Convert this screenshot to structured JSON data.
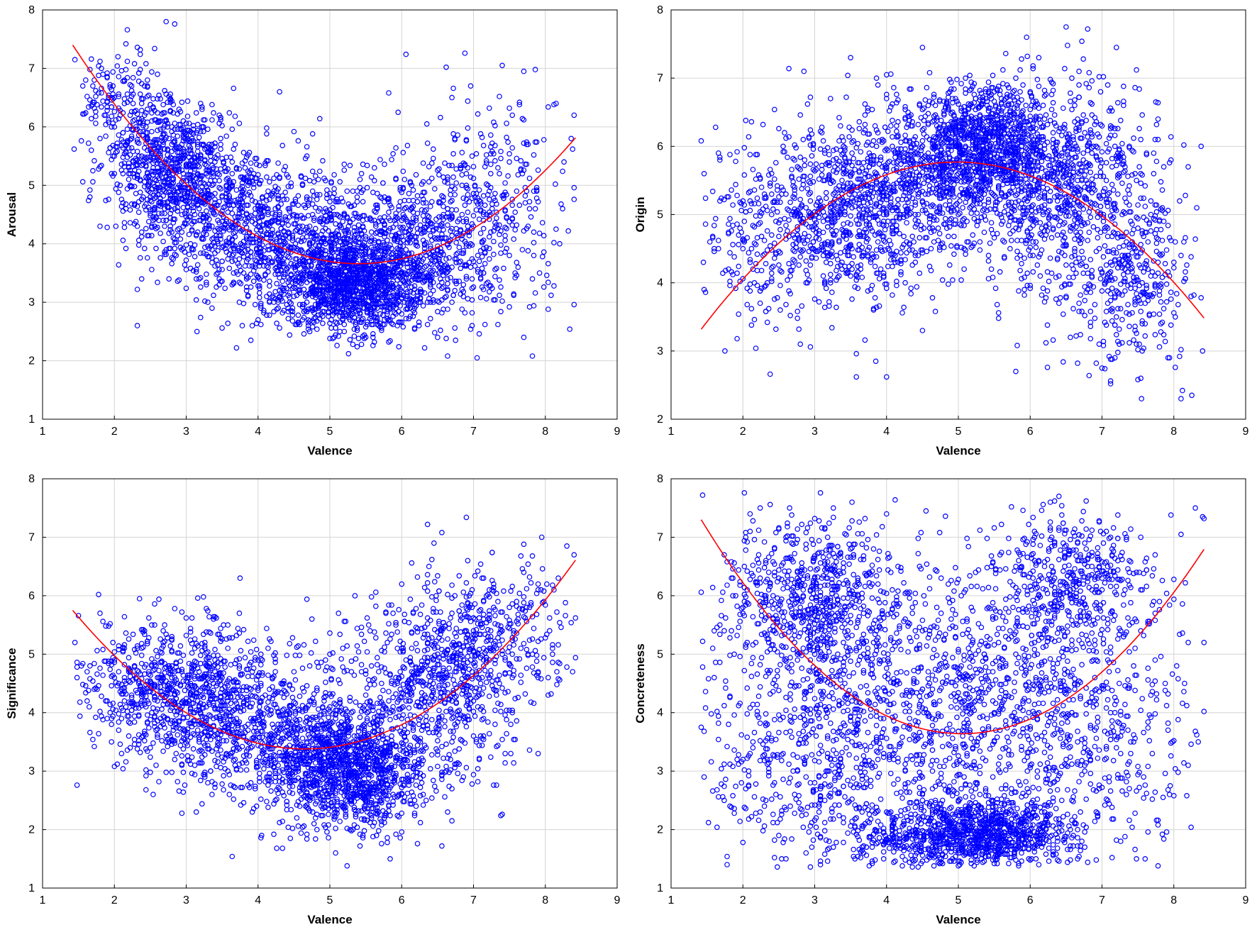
{
  "chart_data": [
    {
      "type": "scatter",
      "xlabel": "Valence",
      "ylabel": "Arousal",
      "xlim": [
        1,
        9
      ],
      "ylim": [
        1,
        8
      ],
      "xticks": [
        1,
        2,
        3,
        4,
        5,
        6,
        7,
        8,
        9
      ],
      "yticks": [
        1,
        2,
        3,
        4,
        5,
        6,
        7,
        8
      ],
      "grid": true,
      "point_color": "#0000ff",
      "fit_color": "#ff0000",
      "fit": {
        "kind": "quadratic",
        "x_range": [
          1.42,
          8.42
        ],
        "vertex_x": 5.4,
        "vertex_y": 3.66,
        "y_at_start": 7.4
      },
      "cloud": [
        {
          "cx": 5.3,
          "cy": 3.3,
          "sx": 0.55,
          "sy": 0.4,
          "n": 1300
        },
        {
          "cx": 4.5,
          "cy": 3.9,
          "sx": 0.9,
          "sy": 0.55,
          "n": 450
        },
        {
          "cx": 6.4,
          "cy": 3.9,
          "sx": 0.7,
          "sy": 0.6,
          "n": 450
        },
        {
          "cx": 2.8,
          "cy": 5.3,
          "sx": 0.45,
          "sy": 0.55,
          "n": 700
        },
        {
          "cx": 3.7,
          "cy": 4.5,
          "sx": 0.6,
          "sy": 0.6,
          "n": 500
        },
        {
          "cx": 2.1,
          "cy": 6.3,
          "sx": 0.4,
          "sy": 0.5,
          "n": 200
        },
        {
          "cx": 7.3,
          "cy": 4.8,
          "sx": 0.55,
          "sy": 0.9,
          "n": 280
        },
        {
          "cx": 5.2,
          "cy": 4.5,
          "sx": 0.9,
          "sy": 0.5,
          "n": 250
        }
      ],
      "outliers": [
        [
          1.45,
          7.15
        ],
        [
          1.6,
          6.8
        ],
        [
          1.7,
          5.25
        ],
        [
          2.05,
          7.2
        ],
        [
          2.3,
          6.0
        ],
        [
          4.3,
          6.6
        ],
        [
          5.95,
          6.25
        ],
        [
          6.35,
          6.05
        ],
        [
          7.05,
          2.05
        ],
        [
          7.4,
          7.05
        ],
        [
          7.7,
          2.4
        ],
        [
          7.7,
          6.95
        ],
        [
          8.15,
          6.4
        ],
        [
          8.15,
          4.25
        ],
        [
          8.4,
          6.2
        ],
        [
          3.9,
          2.35
        ],
        [
          4.7,
          2.65
        ],
        [
          3.15,
          2.5
        ],
        [
          6.75,
          2.35
        ]
      ]
    },
    {
      "type": "scatter",
      "xlabel": "Valence",
      "ylabel": "Origin",
      "xlim": [
        1,
        9
      ],
      "ylim": [
        2,
        8
      ],
      "xticks": [
        1,
        2,
        3,
        4,
        5,
        6,
        7,
        8,
        9
      ],
      "yticks": [
        2,
        3,
        4,
        5,
        6,
        7,
        8
      ],
      "grid": true,
      "point_color": "#0000ff",
      "fit_color": "#ff0000",
      "fit": {
        "kind": "quadratic",
        "x_range": [
          1.42,
          8.42
        ],
        "vertex_x": 4.98,
        "vertex_y": 5.77,
        "y_at_start": 3.32
      },
      "cloud": [
        {
          "cx": 5.4,
          "cy": 6.0,
          "sx": 0.6,
          "sy": 0.45,
          "n": 1200
        },
        {
          "cx": 3.5,
          "cy": 5.0,
          "sx": 0.7,
          "sy": 0.7,
          "n": 800
        },
        {
          "cx": 6.5,
          "cy": 5.3,
          "sx": 0.7,
          "sy": 0.8,
          "n": 800
        },
        {
          "cx": 2.3,
          "cy": 4.7,
          "sx": 0.5,
          "sy": 0.7,
          "n": 200
        },
        {
          "cx": 7.4,
          "cy": 4.0,
          "sx": 0.4,
          "sy": 0.6,
          "n": 300
        },
        {
          "cx": 4.5,
          "cy": 5.4,
          "sx": 0.8,
          "sy": 0.5,
          "n": 400
        }
      ],
      "outliers": [
        [
          1.45,
          4.3
        ],
        [
          1.75,
          3.0
        ],
        [
          1.6,
          4.5
        ],
        [
          2.85,
          7.1
        ],
        [
          3.85,
          2.85
        ],
        [
          4.0,
          7.05
        ],
        [
          3.5,
          7.3
        ],
        [
          4.5,
          7.45
        ],
        [
          5.8,
          2.7
        ],
        [
          5.95,
          7.6
        ],
        [
          6.5,
          7.75
        ],
        [
          7.55,
          2.3
        ],
        [
          8.1,
          2.3
        ],
        [
          8.25,
          2.35
        ],
        [
          8.4,
          3.0
        ],
        [
          8.1,
          4.4
        ],
        [
          7.75,
          6.65
        ],
        [
          7.2,
          7.45
        ],
        [
          7.0,
          2.75
        ]
      ]
    },
    {
      "type": "scatter",
      "xlabel": "Valence",
      "ylabel": "Significance",
      "xlim": [
        1,
        9
      ],
      "ylim": [
        1,
        8
      ],
      "xticks": [
        1,
        2,
        3,
        4,
        5,
        6,
        7,
        8,
        9
      ],
      "yticks": [
        1,
        2,
        3,
        4,
        5,
        6,
        7,
        8
      ],
      "grid": true,
      "point_color": "#0000ff",
      "fit_color": "#ff0000",
      "fit": {
        "kind": "quadratic",
        "x_range": [
          1.42,
          8.42
        ],
        "vertex_x": 4.65,
        "vertex_y": 3.38,
        "y_at_start": 5.75
      },
      "cloud": [
        {
          "cx": 5.3,
          "cy": 3.0,
          "sx": 0.5,
          "sy": 0.5,
          "n": 1100
        },
        {
          "cx": 3.2,
          "cy": 4.2,
          "sx": 0.7,
          "sy": 0.65,
          "n": 900
        },
        {
          "cx": 4.4,
          "cy": 3.5,
          "sx": 0.7,
          "sy": 0.6,
          "n": 500
        },
        {
          "cx": 6.4,
          "cy": 4.4,
          "sx": 0.65,
          "sy": 0.8,
          "n": 700
        },
        {
          "cx": 7.3,
          "cy": 5.4,
          "sx": 0.5,
          "sy": 0.6,
          "n": 300
        },
        {
          "cx": 2.2,
          "cy": 4.6,
          "sx": 0.4,
          "sy": 0.5,
          "n": 150
        }
      ],
      "outliers": [
        [
          1.45,
          5.2
        ],
        [
          1.65,
          4.1
        ],
        [
          1.8,
          5.7
        ],
        [
          2.35,
          5.95
        ],
        [
          3.75,
          6.3
        ],
        [
          4.05,
          1.9
        ],
        [
          4.45,
          1.85
        ],
        [
          5.65,
          1.9
        ],
        [
          6.45,
          6.9
        ],
        [
          6.7,
          2.15
        ],
        [
          7.95,
          7.0
        ],
        [
          8.1,
          5.0
        ],
        [
          8.3,
          6.85
        ],
        [
          8.4,
          6.7
        ],
        [
          5.35,
          6.0
        ],
        [
          4.75,
          5.6
        ]
      ]
    },
    {
      "type": "scatter",
      "xlabel": "Valence",
      "ylabel": "Concreteness",
      "xlim": [
        1,
        9
      ],
      "ylim": [
        1,
        8
      ],
      "xticks": [
        1,
        2,
        3,
        4,
        5,
        6,
        7,
        8,
        9
      ],
      "yticks": [
        1,
        2,
        3,
        4,
        5,
        6,
        7,
        8
      ],
      "grid": true,
      "point_color": "#0000ff",
      "fit_color": "#ff0000",
      "fit": {
        "kind": "quadratic",
        "x_range": [
          1.42,
          8.42
        ],
        "vertex_x": 5.05,
        "vertex_y": 3.64,
        "y_at_start": 7.3
      },
      "cloud": [
        {
          "cx": 5.4,
          "cy": 1.95,
          "sx": 0.55,
          "sy": 0.3,
          "n": 900
        },
        {
          "cx": 5.0,
          "cy": 4.3,
          "sx": 1.1,
          "sy": 1.0,
          "n": 900
        },
        {
          "cx": 3.1,
          "cy": 6.0,
          "sx": 0.6,
          "sy": 0.6,
          "n": 600
        },
        {
          "cx": 3.3,
          "cy": 3.3,
          "sx": 0.8,
          "sy": 1.2,
          "n": 500
        },
        {
          "cx": 6.6,
          "cy": 6.2,
          "sx": 0.6,
          "sy": 0.6,
          "n": 500
        },
        {
          "cx": 6.8,
          "cy": 3.4,
          "sx": 0.7,
          "sy": 1.1,
          "n": 400
        },
        {
          "cx": 4.3,
          "cy": 1.9,
          "sx": 0.6,
          "sy": 0.35,
          "n": 250
        },
        {
          "cx": 2.2,
          "cy": 4.5,
          "sx": 0.5,
          "sy": 1.5,
          "n": 200
        }
      ],
      "outliers": [
        [
          1.42,
          3.75
        ],
        [
          1.6,
          5.4
        ],
        [
          1.6,
          4.6
        ],
        [
          2.1,
          7.4
        ],
        [
          2.6,
          1.5
        ],
        [
          2.65,
          7.5
        ],
        [
          4.0,
          7.4
        ],
        [
          4.55,
          7.45
        ],
        [
          6.4,
          7.7
        ],
        [
          7.85,
          2.55
        ],
        [
          8.1,
          7.05
        ],
        [
          8.15,
          4.5
        ],
        [
          8.3,
          7.5
        ],
        [
          8.4,
          7.35
        ],
        [
          8.2,
          5.2
        ],
        [
          7.95,
          2.75
        ]
      ]
    }
  ]
}
